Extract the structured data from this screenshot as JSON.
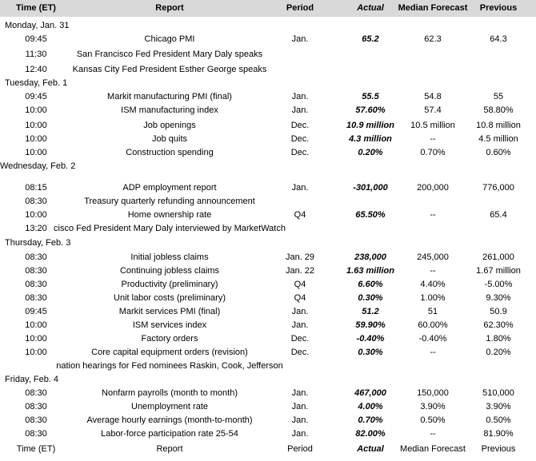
{
  "header": {
    "time": "Time (ET)",
    "report": "Report",
    "period": "Period",
    "actual": "Actual",
    "median_forecast": "Median Forecast",
    "previous": "Previous"
  },
  "days": [
    {
      "label": "Monday, Jan. 31",
      "events": [
        {
          "time": "09:45",
          "report": "Chicago PMI",
          "period": "Jan.",
          "actual": "65.2",
          "median_forecast": "62.3",
          "previous": "64.3"
        },
        {
          "time": "11:30",
          "report": "San Francisco Fed President Mary Daly speaks"
        },
        {
          "time": "12:40",
          "report": "Kansas City Fed President Esther George speaks"
        }
      ]
    },
    {
      "label": "Tuesday, Feb. 1",
      "events": [
        {
          "time": "09:45",
          "report": "Markit manufacturing PMI (final)",
          "period": "Jan.",
          "actual": "55.5",
          "median_forecast": "54.8",
          "previous": "55"
        },
        {
          "time": "10:00",
          "report": "ISM manufacturing index",
          "period": "Jan.",
          "actual": "57.60%",
          "median_forecast": "57.4",
          "previous": "58.80%"
        },
        {
          "time": "10:00",
          "report": "Job openings",
          "period": "Dec.",
          "actual": "10.9 million",
          "median_forecast": "10.5 million",
          "previous": "10.8 million"
        },
        {
          "time": "10:00",
          "report": "Job quits",
          "period": "Dec.",
          "actual": "4.3 million",
          "median_forecast": "--",
          "previous": "4.5 million"
        },
        {
          "time": "10:00",
          "report": "Construction spending",
          "period": "Dec.",
          "actual": "0.20%",
          "median_forecast": "0.70%",
          "previous": "0.60%"
        }
      ]
    },
    {
      "label": "Wednesday, Feb. 2",
      "events": [
        {
          "time": "08:15",
          "report": "ADP employment report",
          "period": "Jan.",
          "actual": "-301,000",
          "median_forecast": "200,000",
          "previous": "776,000"
        },
        {
          "time": "08:30",
          "report": "Treasury quarterly refunding announcement"
        },
        {
          "time": "10:00",
          "report": "Home ownership rate",
          "period": "Q4",
          "actual": "65.50%",
          "median_forecast": "--",
          "previous": "65.4"
        },
        {
          "time": "13:20",
          "report": "cisco Fed President Mary Daly interviewed by MarketWatch"
        }
      ]
    },
    {
      "label": "Thursday, Feb. 3",
      "events": [
        {
          "time": "08:30",
          "report": "Initial jobless claims",
          "period": "Jan. 29",
          "actual": "238,000",
          "median_forecast": "245,000",
          "previous": "261,000"
        },
        {
          "time": "08:30",
          "report": "Continuing jobless claims",
          "period": "Jan. 22",
          "actual": "1.63 million",
          "median_forecast": "--",
          "previous": "1.67 million"
        },
        {
          "time": "08:30",
          "report": "Productivity (preliminary)",
          "period": "Q4",
          "actual": "6.60%",
          "median_forecast": "4.40%",
          "previous": "-5.00%"
        },
        {
          "time": "08:30",
          "report": "Unit labor costs (preliminary)",
          "period": "Q4",
          "actual": "0.30%",
          "median_forecast": "1.00%",
          "previous": "9.30%"
        },
        {
          "time": "09:45",
          "report": "Markit services PMI (final)",
          "period": "Jan.",
          "actual": "51.2",
          "median_forecast": "51",
          "previous": "50.9"
        },
        {
          "time": "10:00",
          "report": "ISM services index",
          "period": "Jan.",
          "actual": "59.90%",
          "median_forecast": "60.00%",
          "previous": "62.30%"
        },
        {
          "time": "10:00",
          "report": "Factory orders",
          "period": "Dec.",
          "actual": "-0.40%",
          "median_forecast": "-0.40%",
          "previous": "1.80%"
        },
        {
          "time": "10:00",
          "report": "Core capital equipment orders (revision)",
          "period": "Dec.",
          "actual": "0.30%",
          "median_forecast": "--",
          "previous": "0.20%"
        },
        {
          "report": "nation hearings for Fed nominees Raskin, Cook, Jefferson"
        }
      ]
    },
    {
      "label": "Friday, Feb. 4",
      "events": [
        {
          "time": "08:30",
          "report": "Nonfarm payrolls (month to month)",
          "period": "Jan.",
          "actual": "467,000",
          "median_forecast": "150,000",
          "previous": "510,000"
        },
        {
          "time": "08:30",
          "report": "Unemployment rate",
          "period": "Jan.",
          "actual": "4.00%",
          "median_forecast": "3.90%",
          "previous": "3.90%"
        },
        {
          "time": "08:30",
          "report": "Average hourly earnings (month-to-month)",
          "period": "Jan.",
          "actual": "0.70%",
          "median_forecast": "0.50%",
          "previous": "0.50%"
        },
        {
          "time": "08:30",
          "report": "Labor-force participation rate 25-54",
          "period": "Jan.",
          "actual": "82.00%",
          "median_forecast": "--",
          "previous": "81.90%"
        }
      ]
    }
  ],
  "footer": {
    "time": "Time (ET)",
    "report": "Report",
    "period": "Period",
    "actual": "Actual",
    "median_forecast": "Median Forecast",
    "previous": "Previous"
  }
}
